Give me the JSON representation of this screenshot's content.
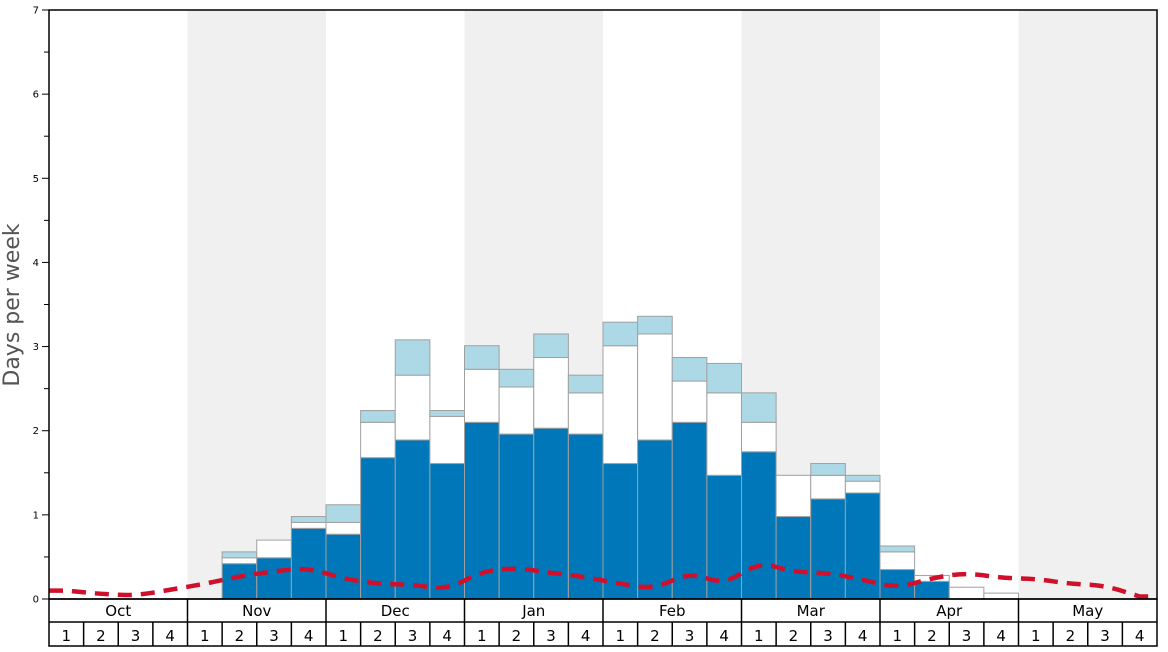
{
  "chart_data": {
    "type": "bar",
    "ylabel": "Days per week",
    "ylim": [
      0,
      7
    ],
    "yticks": [
      "0",
      "1",
      "2",
      "3",
      "4",
      "5",
      "6",
      "7"
    ],
    "months": [
      "Oct",
      "Nov",
      "Dec",
      "Jan",
      "Feb",
      "Mar",
      "Apr",
      "May"
    ],
    "week_labels": [
      "1",
      "2",
      "3",
      "4",
      "1",
      "2",
      "3",
      "4",
      "1",
      "2",
      "3",
      "4",
      "1",
      "2",
      "3",
      "4",
      "1",
      "2",
      "3",
      "4",
      "1",
      "2",
      "3",
      "4",
      "1",
      "2",
      "3",
      "4",
      "1",
      "2",
      "3",
      "4"
    ],
    "shaded_months": [
      "Nov",
      "Jan",
      "Mar",
      "May"
    ],
    "stack_order": [
      "dark_blue",
      "white",
      "light_blue"
    ],
    "colors": {
      "dark_blue": "#0077b8",
      "white": "#ffffff",
      "light_blue": "#add8e6",
      "dashed_line": "#d0102a",
      "shade": "#f0f0f0",
      "bar_outline": "#a0a0a0"
    },
    "series": [
      {
        "key": "dark_blue",
        "values": [
          0,
          0,
          0,
          0,
          0,
          0.42,
          0.49,
          0.84,
          0.77,
          1.68,
          1.89,
          1.61,
          2.1,
          1.96,
          2.03,
          1.96,
          1.61,
          1.89,
          2.1,
          1.47,
          1.75,
          0.98,
          1.19,
          1.26,
          0.35,
          0.21,
          0,
          0,
          0,
          0,
          0,
          0
        ]
      },
      {
        "key": "white",
        "values": [
          0,
          0,
          0,
          0,
          0,
          0.07,
          0.21,
          0.07,
          0.14,
          0.42,
          0.77,
          0.56,
          0.63,
          0.56,
          0.84,
          0.49,
          1.4,
          1.26,
          0.49,
          0.98,
          0.35,
          0.49,
          0.28,
          0.14,
          0.21,
          0.07,
          0.14,
          0.07,
          0,
          0,
          0,
          0
        ]
      },
      {
        "key": "light_blue",
        "values": [
          0,
          0,
          0,
          0,
          0,
          0.07,
          0,
          0.07,
          0.21,
          0.14,
          0.42,
          0.07,
          0.28,
          0.21,
          0.28,
          0.21,
          0.28,
          0.21,
          0.28,
          0.35,
          0.35,
          0,
          0.14,
          0.07,
          0.07,
          0,
          0,
          0,
          0,
          0,
          0,
          0
        ]
      },
      {
        "key": "dashed_line",
        "type": "line",
        "values": [
          0.1,
          0.06,
          0.04,
          0.11,
          0.18,
          0.27,
          0.33,
          0.37,
          0.24,
          0.18,
          0.17,
          0.11,
          0.33,
          0.37,
          0.31,
          0.26,
          0.18,
          0.12,
          0.32,
          0.17,
          0.44,
          0.32,
          0.31,
          0.23,
          0.13,
          0.25,
          0.31,
          0.25,
          0.24,
          0.18,
          0.16,
          0.03
        ]
      }
    ]
  }
}
